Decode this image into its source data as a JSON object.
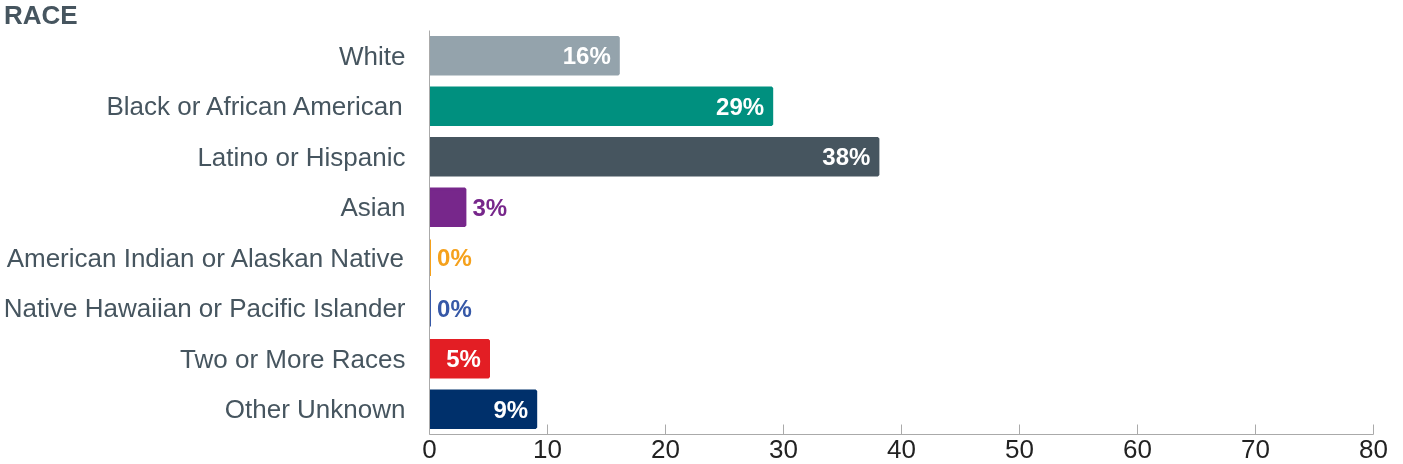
{
  "chart_data": {
    "type": "bar",
    "orientation": "horizontal",
    "title": "RACE",
    "categories": [
      "White",
      "Black or African American",
      "Latino or Hispanic",
      "Asian",
      "American Indian or Alaskan Native",
      "Native Hawaiian or Pacific Islander",
      "Two or More Races",
      "Other Unknown"
    ],
    "values": [
      16,
      29,
      38,
      3,
      0,
      0,
      5,
      9
    ],
    "value_labels": [
      "16%",
      "29%",
      "38%",
      "3%",
      "0%",
      "0%",
      "5%",
      "9%"
    ],
    "colors": [
      "#94a3ac",
      "#00907f",
      "#46555f",
      "#77278b",
      "#f5a11c",
      "#3658a7",
      "#e31e24",
      "#00306b"
    ],
    "xlim": [
      0,
      80
    ],
    "xticks": [
      0,
      10,
      20,
      30,
      40,
      50,
      60,
      70,
      80
    ],
    "grid": false
  }
}
